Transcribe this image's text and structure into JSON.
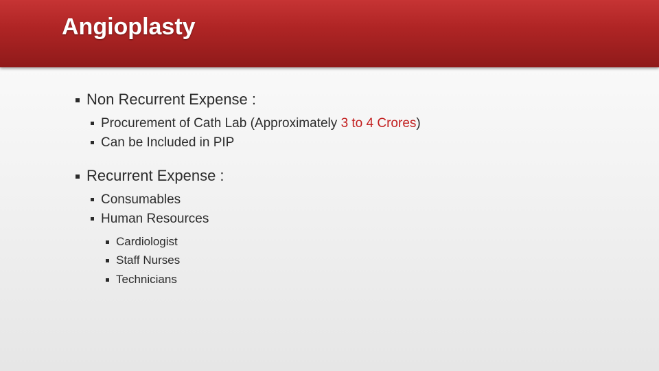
{
  "colors": {
    "header_gradient_top": "#c63434",
    "header_gradient_mid": "#b02525",
    "header_gradient_bottom": "#8f1a1a",
    "body_bg_top": "#fdfdfd",
    "body_bg_bottom": "#e6e6e6",
    "text": "#2b2b2b",
    "highlight": "#c21e1e"
  },
  "title": "Angioplasty",
  "bullets": [
    {
      "text": "Non Recurrent Expense :",
      "children": [
        {
          "text_prefix": "Procurement of Cath Lab (Approximately ",
          "highlight": "3 to 4 Crores",
          "text_suffix": ")"
        },
        {
          "text": "Can be Included in PIP"
        }
      ]
    },
    {
      "text": "Recurrent Expense :",
      "children": [
        {
          "text": "Consumables"
        },
        {
          "text": "Human Resources",
          "children": [
            {
              "text": "Cardiologist"
            },
            {
              "text": "Staff Nurses"
            },
            {
              "text": "Technicians"
            }
          ]
        }
      ]
    }
  ]
}
